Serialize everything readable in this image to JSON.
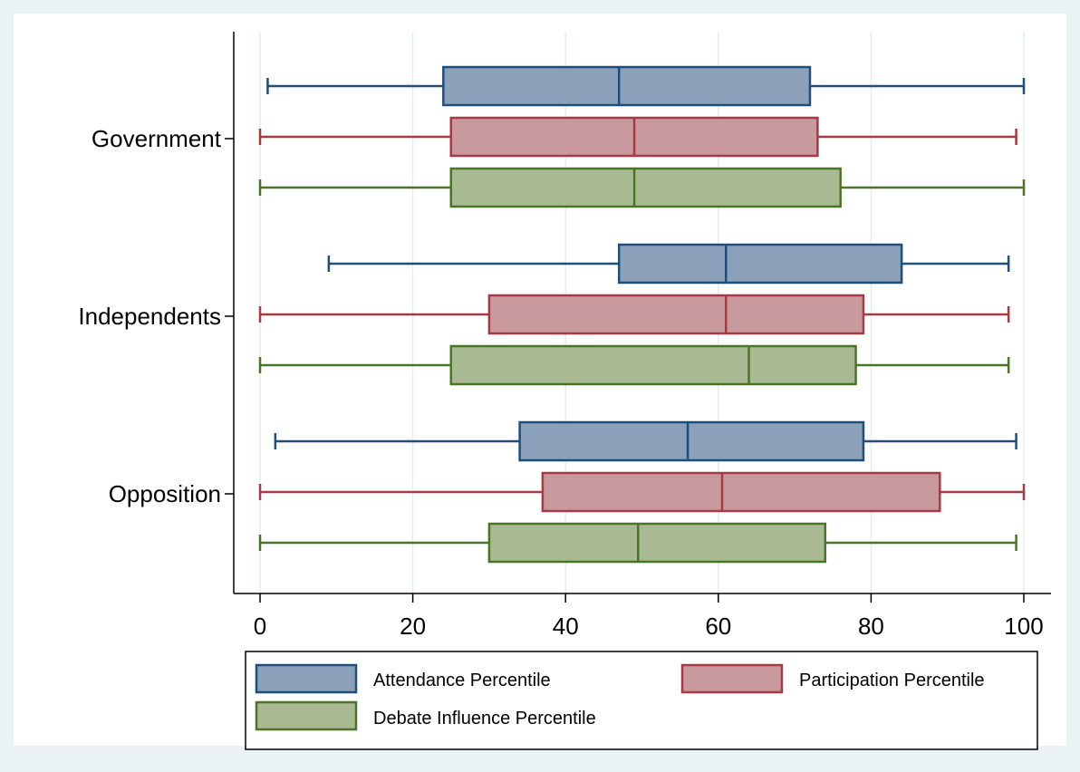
{
  "chart_data": {
    "type": "boxplot",
    "orientation": "horizontal",
    "categories": [
      "Government",
      "Independents",
      "Opposition"
    ],
    "xlim": [
      0,
      100
    ],
    "xticks": [
      0,
      20,
      40,
      60,
      80,
      100
    ],
    "grid": true,
    "legend_position": "bottom",
    "series": [
      {
        "name": "Attendance Percentile",
        "color": "#8aa1b9",
        "edge": "#1f4e79",
        "boxes": [
          {
            "min": 1,
            "q1": 24,
            "median": 47,
            "q3": 72,
            "max": 100
          },
          {
            "min": 9,
            "q1": 47,
            "median": 61,
            "q3": 84,
            "max": 98
          },
          {
            "min": 2,
            "q1": 34,
            "median": 56,
            "q3": 79,
            "max": 99
          }
        ]
      },
      {
        "name": "Participation Percentile",
        "color": "#c99a9d",
        "edge": "#a53a44",
        "boxes": [
          {
            "min": 0,
            "q1": 25,
            "median": 49,
            "q3": 73,
            "max": 99
          },
          {
            "min": 0,
            "q1": 30,
            "median": 61,
            "q3": 79,
            "max": 98
          },
          {
            "min": 0,
            "q1": 37,
            "median": 60.5,
            "q3": 89,
            "max": 100
          }
        ]
      },
      {
        "name": "Debate Influence Percentile",
        "color": "#a9ba93",
        "edge": "#4b7526",
        "boxes": [
          {
            "min": 0,
            "q1": 25,
            "median": 49,
            "q3": 76,
            "max": 100
          },
          {
            "min": 0,
            "q1": 25,
            "median": 64,
            "q3": 78,
            "max": 98
          },
          {
            "min": 0,
            "q1": 30,
            "median": 49.5,
            "q3": 74,
            "max": 99
          }
        ]
      }
    ]
  },
  "colors": {
    "outer_background": "#eaf2f3",
    "plot_background": "#ffffff",
    "grid": "#e4eeee",
    "axis": "#000000"
  }
}
